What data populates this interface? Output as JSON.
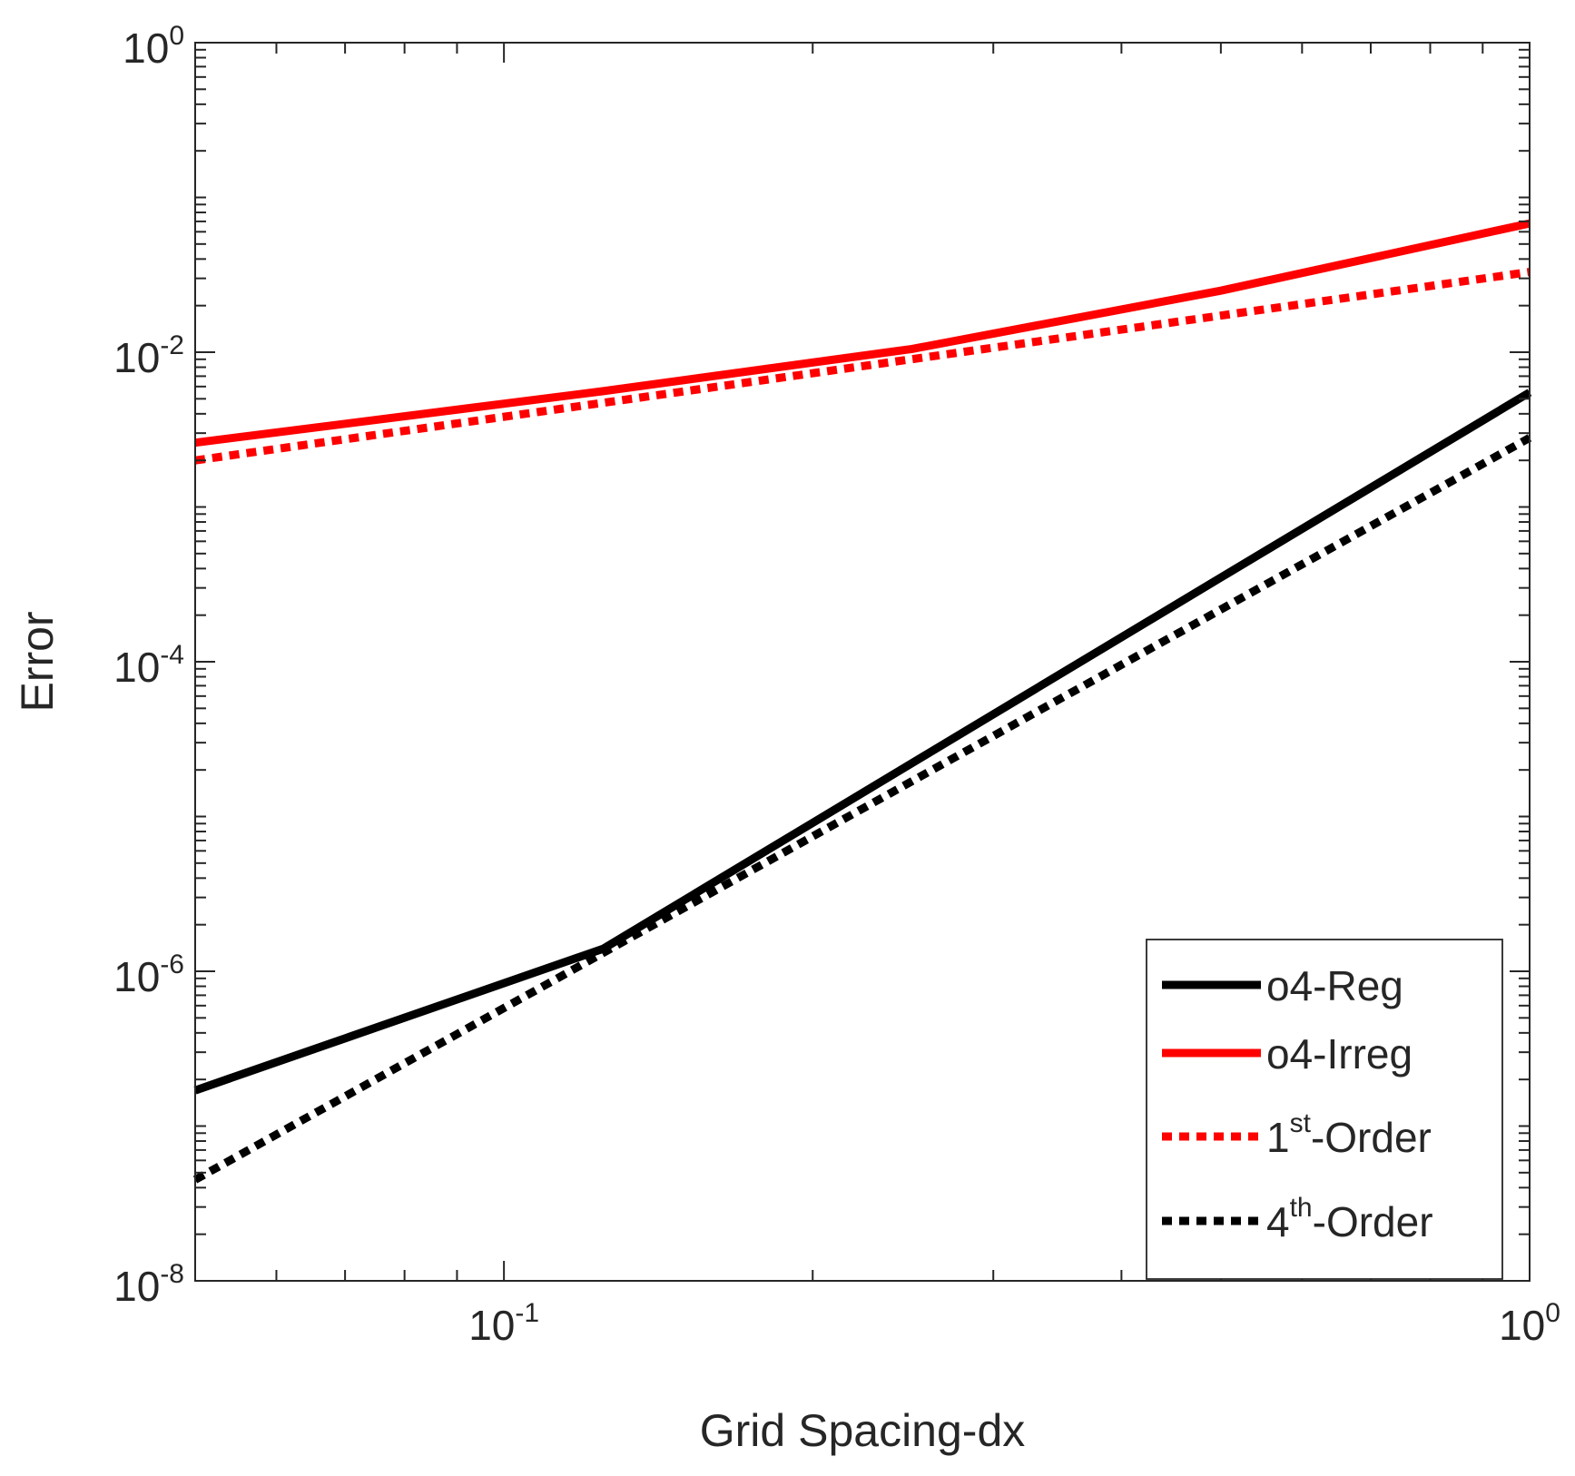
{
  "chart_data": {
    "type": "line",
    "scale": {
      "x": "log",
      "y": "log"
    },
    "xlabel": "Grid Spacing-dx",
    "ylabel": "Error",
    "xlim": [
      0.05,
      1
    ],
    "ylim": [
      1e-08,
      1
    ],
    "x_ticks": [
      {
        "value": 0.1,
        "base": "10",
        "exp": "-1"
      },
      {
        "value": 1,
        "base": "10",
        "exp": "0"
      }
    ],
    "y_ticks": [
      {
        "value": 1e-08,
        "base": "10",
        "exp": "-8"
      },
      {
        "value": 1e-06,
        "base": "10",
        "exp": "-6"
      },
      {
        "value": 0.0001,
        "base": "10",
        "exp": "-4"
      },
      {
        "value": 0.01,
        "base": "10",
        "exp": "-2"
      },
      {
        "value": 1,
        "base": "10",
        "exp": "0"
      }
    ],
    "grid": false,
    "legend_position": "bottom-right",
    "series": [
      {
        "name": "o4-Reg",
        "legend_main": "o4-Reg",
        "legend_sup": "",
        "legend_suffix": "",
        "color": "#000000",
        "style": "solid",
        "x": [
          0.05,
          0.125,
          0.5,
          1.0
        ],
        "y": [
          1.7e-07,
          1.4e-06,
          0.00035,
          0.0055
        ]
      },
      {
        "name": "o4-Irreg",
        "legend_main": "o4-Irreg",
        "legend_sup": "",
        "legend_suffix": "",
        "color": "#ff0000",
        "style": "solid",
        "x": [
          0.05,
          0.125,
          0.25,
          0.5,
          1.0
        ],
        "y": [
          0.0026,
          0.0056,
          0.0105,
          0.025,
          0.068
        ]
      },
      {
        "name": "1st-Order",
        "legend_main": "1",
        "legend_sup": "st",
        "legend_suffix": "-Order",
        "color": "#ff0000",
        "style": "dotted",
        "x": [
          0.05,
          1.0
        ],
        "y": [
          0.002,
          0.033
        ]
      },
      {
        "name": "4th-Order",
        "legend_main": "4",
        "legend_sup": "th",
        "legend_suffix": "-Order",
        "color": "#000000",
        "style": "dotted",
        "x": [
          0.05,
          1.0
        ],
        "y": [
          4.5e-08,
          0.0028
        ]
      }
    ]
  }
}
